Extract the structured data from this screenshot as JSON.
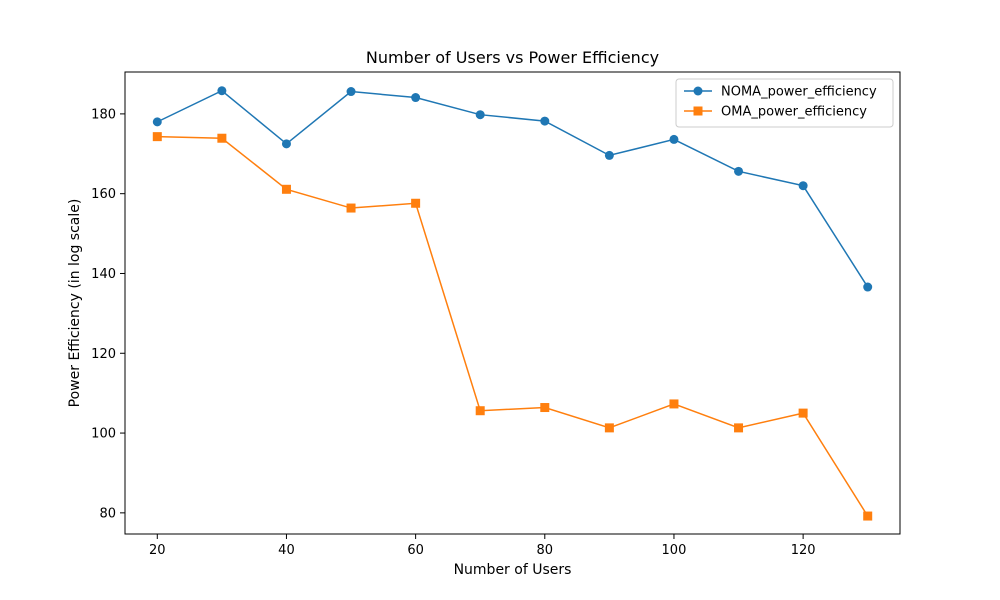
{
  "chart_data": {
    "type": "line",
    "title": "Number of Users vs Power Efficiency",
    "xlabel": "Number of Users",
    "ylabel": "Power Efficiency (in log scale)",
    "x": [
      20,
      30,
      40,
      50,
      60,
      70,
      80,
      90,
      100,
      110,
      120,
      130
    ],
    "xlim": [
      15,
      135
    ],
    "ylim": [
      74.7,
      190.5
    ],
    "xticks": [
      20,
      40,
      60,
      80,
      100,
      120
    ],
    "yticks": [
      80,
      100,
      120,
      140,
      160,
      180
    ],
    "grid": false,
    "legend_position": "top-right",
    "series": [
      {
        "name": "NOMA_power_efficiency",
        "color": "#1f77b4",
        "marker": "circle",
        "values": [
          178.0,
          185.8,
          172.5,
          185.6,
          184.1,
          179.8,
          178.2,
          169.6,
          173.6,
          165.6,
          162.0,
          136.6
        ]
      },
      {
        "name": "OMA_power_efficiency",
        "color": "#ff7f0e",
        "marker": "square",
        "values": [
          174.3,
          173.9,
          161.1,
          156.4,
          157.6,
          105.6,
          106.4,
          101.3,
          107.3,
          101.3,
          105.0,
          79.2
        ]
      }
    ]
  }
}
